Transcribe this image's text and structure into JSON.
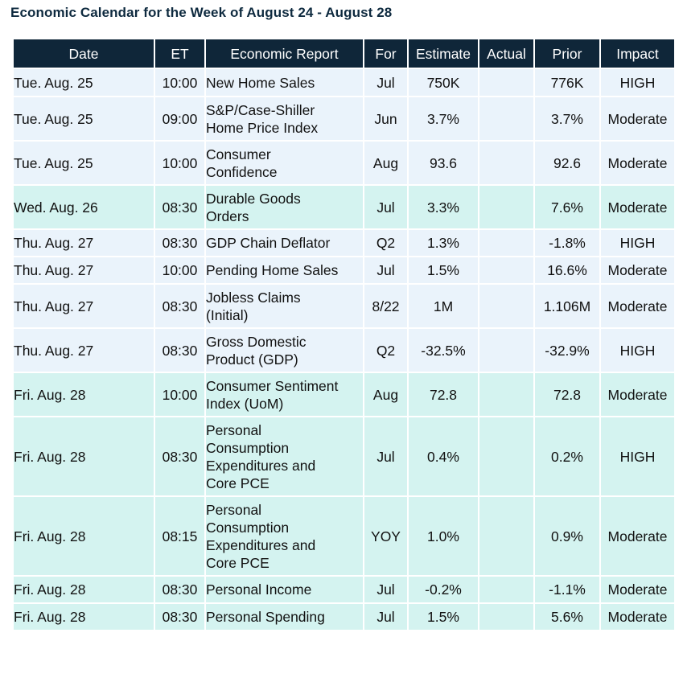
{
  "title": "Economic Calendar for the Week of August 24 - August 28",
  "colors": {
    "header_bg": "#0f2639",
    "row_light": "#eaf3fb",
    "row_teal": "#d4f3f0",
    "title_color": "#0e2a3f"
  },
  "columns": [
    "Date",
    "ET",
    "Economic Report",
    "For",
    "Estimate",
    "Actual",
    "Prior",
    "Impact"
  ],
  "rows": [
    {
      "date": "Tue. Aug. 25",
      "et": "10:00",
      "report": [
        "New Home Sales"
      ],
      "for": "Jul",
      "estimate": "750K",
      "actual": "",
      "prior": "776K",
      "impact": "HIGH",
      "shade": "light"
    },
    {
      "date": "Tue. Aug. 25",
      "et": "09:00",
      "report": [
        "S&P/Case-Shiller",
        "Home Price Index"
      ],
      "for": "Jun",
      "estimate": "3.7%",
      "actual": "",
      "prior": "3.7%",
      "impact": "Moderate",
      "shade": "light"
    },
    {
      "date": "Tue. Aug. 25",
      "et": "10:00",
      "report": [
        "Consumer",
        "Confidence"
      ],
      "for": "Aug",
      "estimate": "93.6",
      "actual": "",
      "prior": "92.6",
      "impact": "Moderate",
      "shade": "light"
    },
    {
      "date": "Wed. Aug. 26",
      "et": "08:30",
      "report": [
        "Durable Goods",
        "Orders"
      ],
      "for": "Jul",
      "estimate": "3.3%",
      "actual": "",
      "prior": "7.6%",
      "impact": "Moderate",
      "shade": "teal"
    },
    {
      "date": "Thu. Aug. 27",
      "et": "08:30",
      "report": [
        "GDP Chain Deflator"
      ],
      "for": "Q2",
      "estimate": "1.3%",
      "actual": "",
      "prior": "-1.8%",
      "impact": "HIGH",
      "shade": "light"
    },
    {
      "date": "Thu. Aug. 27",
      "et": "10:00",
      "report": [
        "Pending Home Sales"
      ],
      "for": "Jul",
      "estimate": "1.5%",
      "actual": "",
      "prior": "16.6%",
      "impact": "Moderate",
      "shade": "light"
    },
    {
      "date": "Thu. Aug. 27",
      "et": "08:30",
      "report": [
        "Jobless Claims",
        "(Initial)"
      ],
      "for": "8/22",
      "estimate": "1M",
      "actual": "",
      "prior": "1.106M",
      "impact": "Moderate",
      "shade": "light"
    },
    {
      "date": "Thu. Aug. 27",
      "et": "08:30",
      "report": [
        "Gross Domestic",
        "Product (GDP)"
      ],
      "for": "Q2",
      "estimate": "-32.5%",
      "actual": "",
      "prior": "-32.9%",
      "impact": "HIGH",
      "shade": "light"
    },
    {
      "date": "Fri. Aug. 28",
      "et": "10:00",
      "report": [
        "Consumer Sentiment",
        "Index (UoM)"
      ],
      "for": "Aug",
      "estimate": "72.8",
      "actual": "",
      "prior": "72.8",
      "impact": "Moderate",
      "shade": "teal"
    },
    {
      "date": "Fri. Aug. 28",
      "et": "08:30",
      "report": [
        "Personal",
        "Consumption",
        "Expenditures and",
        "Core PCE"
      ],
      "for": "Jul",
      "estimate": "0.4%",
      "actual": "",
      "prior": "0.2%",
      "impact": "HIGH",
      "shade": "teal"
    },
    {
      "date": "Fri. Aug. 28",
      "et": "08:15",
      "report": [
        "Personal",
        "Consumption",
        "Expenditures and",
        "Core PCE"
      ],
      "for": "YOY",
      "estimate": "1.0%",
      "actual": "",
      "prior": "0.9%",
      "impact": "Moderate",
      "shade": "teal"
    },
    {
      "date": "Fri. Aug. 28",
      "et": "08:30",
      "report": [
        "Personal Income"
      ],
      "for": "Jul",
      "estimate": "-0.2%",
      "actual": "",
      "prior": "-1.1%",
      "impact": "Moderate",
      "shade": "teal"
    },
    {
      "date": "Fri. Aug. 28",
      "et": "08:30",
      "report": [
        "Personal Spending"
      ],
      "for": "Jul",
      "estimate": "1.5%",
      "actual": "",
      "prior": "5.6%",
      "impact": "Moderate",
      "shade": "teal"
    }
  ]
}
